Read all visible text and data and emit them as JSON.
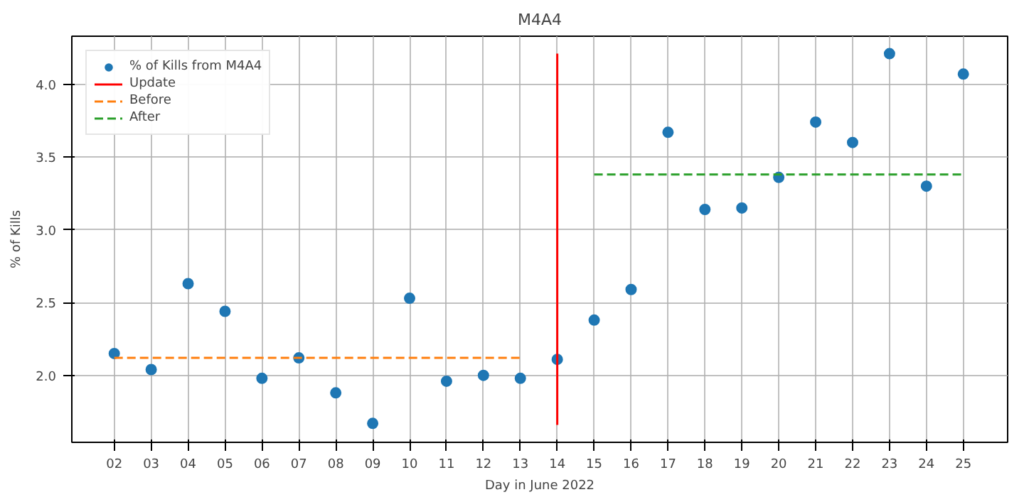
{
  "chart_data": {
    "type": "scatter",
    "title": "M4A4",
    "xlabel": "Day in June 2022",
    "ylabel": "% of Kills",
    "xlim": [
      0.85,
      26.2
    ],
    "ylim": [
      1.54,
      4.33
    ],
    "xticks": [
      {
        "value": 2,
        "label": "02"
      },
      {
        "value": 3,
        "label": "03"
      },
      {
        "value": 4,
        "label": "04"
      },
      {
        "value": 5,
        "label": "05"
      },
      {
        "value": 6,
        "label": "06"
      },
      {
        "value": 7,
        "label": "07"
      },
      {
        "value": 8,
        "label": "08"
      },
      {
        "value": 9,
        "label": "09"
      },
      10,
      11,
      12,
      13,
      14,
      15,
      16,
      17,
      18,
      19,
      20,
      21,
      22,
      23,
      24,
      25
    ],
    "yticks": [
      {
        "value": 2.0,
        "label": "2.0"
      },
      2.5,
      {
        "value": 3.0,
        "label": "3.0"
      },
      3.5,
      {
        "value": 4.0,
        "label": "4.0"
      }
    ],
    "grid": true,
    "legend": "top left",
    "series": [
      {
        "name": "% of Kills from M4A4",
        "marker": "circle",
        "color": "#1f77b4",
        "x": [
          2,
          3,
          4,
          5,
          6,
          7,
          8,
          9,
          10,
          11,
          12,
          13,
          14,
          15,
          16,
          17,
          18,
          19,
          20,
          21,
          22,
          23,
          24,
          25
        ],
        "values": [
          2.15,
          2.04,
          2.63,
          2.44,
          1.98,
          2.12,
          1.88,
          1.67,
          2.53,
          1.96,
          2.0,
          1.98,
          2.11,
          2.38,
          2.59,
          3.67,
          3.14,
          3.15,
          3.36,
          3.74,
          3.6,
          4.21,
          3.3,
          4.07
        ]
      },
      {
        "name": "Update",
        "type": "line",
        "line_style": "solid",
        "color": "#ff0000",
        "x": [
          14,
          14
        ],
        "values": [
          1.66,
          4.21
        ]
      },
      {
        "name": "Before",
        "type": "line",
        "line_style": "dashed",
        "color": "#ff7f0e",
        "x": [
          2,
          13
        ],
        "values": [
          2.12,
          2.12
        ]
      },
      {
        "name": "After",
        "type": "line",
        "line_style": "dashed",
        "color": "#2ca02c",
        "x": [
          15,
          25
        ],
        "values": [
          3.38,
          3.38
        ]
      }
    ]
  }
}
